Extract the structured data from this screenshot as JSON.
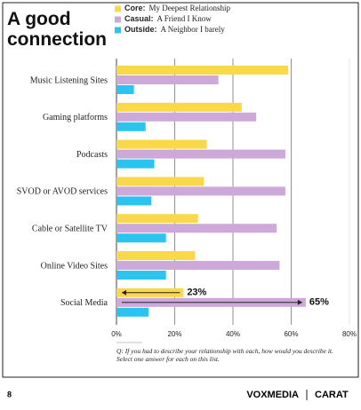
{
  "chart_data": {
    "type": "hbar",
    "title": "A good connection",
    "categories": [
      "Music Listening Sites",
      "Gaming platforms",
      "Podcasts",
      "SVOD or AVOD services",
      "Cable or Satellite TV",
      "Online Video Sites",
      "Social Media"
    ],
    "series": [
      {
        "name": "Core:",
        "description": "My Deepest Relationship",
        "color": "#f9d84a",
        "values": [
          59,
          43,
          31,
          30,
          28,
          27,
          23
        ],
        "value_labels": [
          null,
          null,
          null,
          null,
          null,
          null,
          "23%"
        ]
      },
      {
        "name": "Casual:",
        "description": "A Friend I Know",
        "color": "#cda9d9",
        "values": [
          35,
          48,
          58,
          58,
          55,
          56,
          65
        ],
        "value_labels": [
          null,
          null,
          null,
          null,
          null,
          null,
          "65%"
        ]
      },
      {
        "name": "Outside:",
        "description": "A Neighbor I barely",
        "color": "#2bc3ef",
        "values": [
          6,
          10,
          13,
          12,
          17,
          17,
          11
        ]
      }
    ],
    "xlim": [
      0,
      80
    ],
    "xticks": [
      {
        "value": 0,
        "label": "0%"
      },
      {
        "value": 20,
        "label": "20%"
      },
      {
        "value": 40,
        "label": "40%"
      },
      {
        "value": 60,
        "label": "60%"
      },
      {
        "value": 80,
        "label": "80%"
      }
    ],
    "grid": true,
    "note": "Q: If you had to describe your relationship with each, how would you describe it. Select one answer for each on this list.",
    "page_number": "8",
    "footer_brand_1": "VOXMEDIA",
    "footer_brand_2": "CARAT"
  }
}
